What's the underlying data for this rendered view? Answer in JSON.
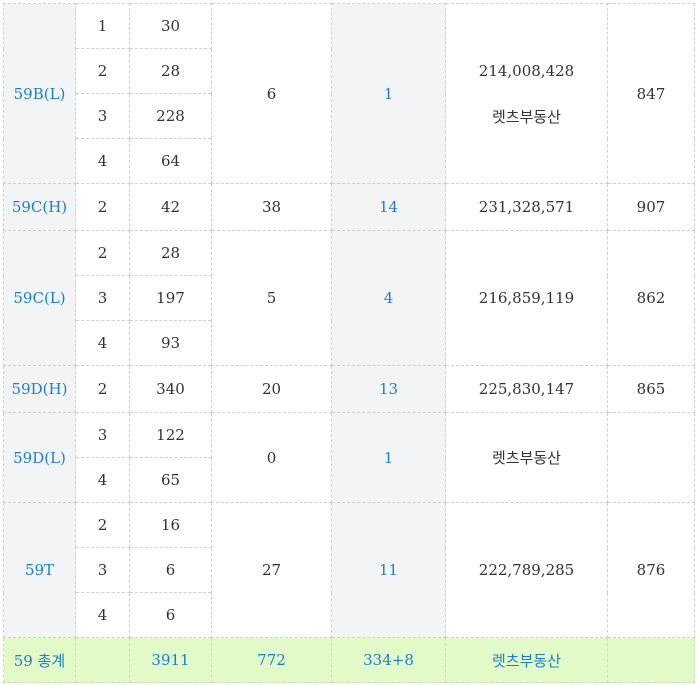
{
  "groups": [
    {
      "type": "59B(L)",
      "rows": [
        {
          "priority": "1",
          "count": "30"
        },
        {
          "priority": "2",
          "count": "28"
        },
        {
          "priority": "3",
          "count": "228"
        },
        {
          "priority": "4",
          "count": "64"
        }
      ],
      "col_c": "6",
      "col_d": "1",
      "col_e": [
        "214,008,428",
        "렛츠부동산"
      ],
      "col_f": "847"
    },
    {
      "type": "59C(H)",
      "rows": [
        {
          "priority": "2",
          "count": "42"
        }
      ],
      "col_c": "38",
      "col_d": "14",
      "col_e": [
        "231,328,571"
      ],
      "col_f": "907"
    },
    {
      "type": "59C(L)",
      "rows": [
        {
          "priority": "2",
          "count": "28"
        },
        {
          "priority": "3",
          "count": "197"
        },
        {
          "priority": "4",
          "count": "93"
        }
      ],
      "col_c": "5",
      "col_d": "4",
      "col_e": [
        "216,859,119"
      ],
      "col_f": "862"
    },
    {
      "type": "59D(H)",
      "rows": [
        {
          "priority": "2",
          "count": "340"
        }
      ],
      "col_c": "20",
      "col_d": "13",
      "col_e": [
        "225,830,147"
      ],
      "col_f": "865"
    },
    {
      "type": "59D(L)",
      "rows": [
        {
          "priority": "3",
          "count": "122"
        },
        {
          "priority": "4",
          "count": "65"
        }
      ],
      "col_c": "0",
      "col_d": "1",
      "col_e": [
        "렛츠부동산"
      ],
      "col_f": ""
    },
    {
      "type": "59T",
      "rows": [
        {
          "priority": "2",
          "count": "16"
        },
        {
          "priority": "3",
          "count": "6"
        },
        {
          "priority": "4",
          "count": "6"
        }
      ],
      "col_c": "27",
      "col_d": "11",
      "col_e": [
        "222,789,285"
      ],
      "col_f": "876"
    }
  ],
  "total": {
    "label": "59 총계",
    "priority": "",
    "count": "3911",
    "col_c": "772",
    "col_d": "334+8",
    "col_e": "렛츠부동산",
    "col_f": ""
  }
}
